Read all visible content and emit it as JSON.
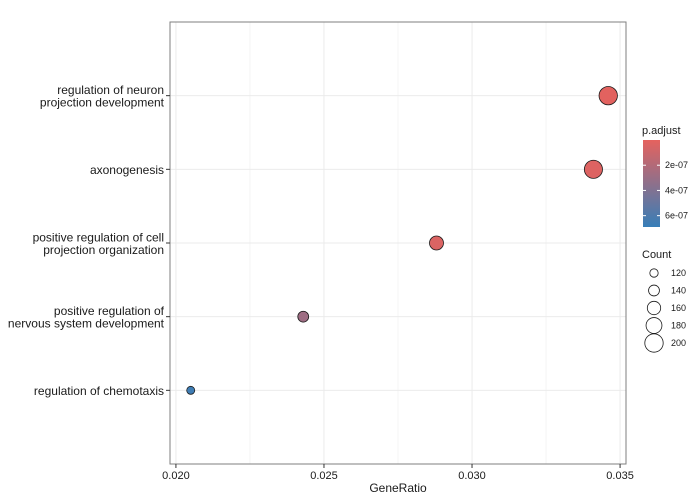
{
  "chart_data": {
    "type": "scatter",
    "title": "",
    "xlabel": "GeneRatio",
    "ylabel": "",
    "xlim": [
      0.0198,
      0.0352
    ],
    "x_ticks": [
      0.02,
      0.025,
      0.03,
      0.035
    ],
    "x_tick_labels": [
      "0.020",
      "0.025",
      "0.030",
      "0.035"
    ],
    "grid": true,
    "categories": [
      "regulation of neuron projection development",
      "axonogenesis",
      "positive regulation of cell projection organization",
      "positive regulation of nervous system development",
      "regulation of chemotaxis"
    ],
    "category_label_lines": [
      [
        "regulation of neuron",
        "projection development"
      ],
      [
        "axonogenesis"
      ],
      [
        "positive regulation of cell",
        "projection organization"
      ],
      [
        "positive regulation of",
        "nervous system development"
      ],
      [
        "regulation of chemotaxis"
      ]
    ],
    "points": [
      {
        "term": "regulation of neuron projection development",
        "gene_ratio": 0.0346,
        "count": 200,
        "p_adjust": 1e-08
      },
      {
        "term": "axonogenesis",
        "gene_ratio": 0.0341,
        "count": 198,
        "p_adjust": 3e-08
      },
      {
        "term": "positive regulation of cell projection organization",
        "gene_ratio": 0.0288,
        "count": 165,
        "p_adjust": 4e-08
      },
      {
        "term": "positive regulation of nervous system development",
        "gene_ratio": 0.0243,
        "count": 140,
        "p_adjust": 2.8e-07
      },
      {
        "term": "regulation of chemotaxis",
        "gene_ratio": 0.0205,
        "count": 117,
        "p_adjust": 6.6e-07
      }
    ],
    "legend": {
      "color": {
        "title": "p.adjust",
        "labels": [
          "2e-07",
          "4e-07",
          "6e-07"
        ],
        "values": [
          2e-07,
          4e-07,
          6e-07
        ],
        "range": [
          0,
          6.9e-07
        ],
        "low_color": "#e5625e",
        "high_color": "#377eb8",
        "placement": "right"
      },
      "size": {
        "title": "Count",
        "labels": [
          "120",
          "140",
          "160",
          "180",
          "200"
        ],
        "values": [
          120,
          140,
          160,
          180,
          200
        ],
        "placement": "right"
      }
    }
  }
}
